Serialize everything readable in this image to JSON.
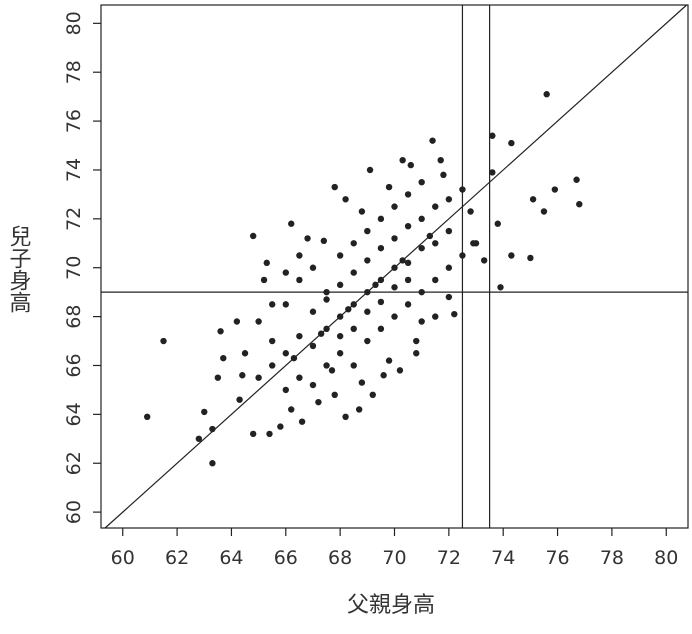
{
  "chart_data": {
    "type": "scatter",
    "x_label": "父親身高",
    "y_label": "兒子身高",
    "xlim": [
      59.2,
      80.8
    ],
    "ylim": [
      59.35,
      80.75
    ],
    "xticks": [
      60,
      62,
      64,
      66,
      68,
      70,
      72,
      74,
      76,
      78,
      80
    ],
    "yticks": [
      60,
      62,
      64,
      66,
      68,
      70,
      72,
      74,
      76,
      78,
      80
    ],
    "color": "#222222",
    "hline": 69.0,
    "vlines": [
      72.5,
      73.5
    ],
    "diagonal": true,
    "x": [
      60.9,
      61.5,
      62.8,
      63.0,
      63.3,
      63.3,
      63.5,
      63.6,
      63.7,
      64.3,
      64.4,
      64.8,
      64.8,
      65.4,
      65.3,
      75.6,
      76.7,
      76.8,
      75.9,
      75.5,
      75.0,
      75.1,
      74.3,
      73.6,
      73.9,
      74.3,
      71.4,
      70.3,
      72.9,
      72.2,
      73.6,
      71.7,
      69.1,
      68.2,
      66.2,
      67.4,
      70.8,
      68.2,
      66.6,
      65.8,
      67.8,
      66,
      66.5,
      67,
      67.5,
      68,
      68.5,
      69,
      69.5,
      70,
      70.5,
      71,
      71.5,
      72,
      65.5,
      66,
      66.5,
      67,
      67.5,
      68,
      68.5,
      69,
      69.5,
      70,
      70.5,
      71,
      71.5,
      72,
      72.5,
      65,
      65.5,
      66,
      66.5,
      67,
      67.5,
      68,
      68.5,
      69,
      69.5,
      70,
      70.5,
      71,
      71.5,
      72,
      72.5,
      73,
      64.5,
      65,
      65.5,
      66,
      66.5,
      67,
      67.5,
      68,
      68.5,
      69,
      69.5,
      70,
      70.5,
      71,
      68,
      68.5,
      69,
      69.5,
      70,
      70.5,
      71,
      71.5,
      72,
      66.2,
      67.2,
      68.8,
      69.8,
      70.8,
      64.2,
      65.2,
      66.8,
      68.8,
      69.8,
      70.6,
      71.8,
      72.8,
      73.3,
      73.8,
      67.8,
      70.2,
      69.2,
      66.3,
      67.3,
      68.3,
      69.3,
      70.3,
      71.3,
      67.7,
      68.7,
      69.6
    ],
    "values": [
      63.9,
      67.0,
      63.0,
      64.1,
      63.4,
      62.0,
      65.5,
      67.4,
      66.3,
      64.6,
      65.6,
      71.3,
      63.2,
      63.2,
      70.2,
      77.1,
      73.6,
      72.6,
      73.2,
      72.3,
      70.4,
      72.8,
      75.1,
      75.4,
      69.2,
      70.5,
      75.2,
      74.4,
      71.0,
      68.1,
      73.9,
      74.4,
      74.0,
      72.8,
      71.8,
      71.1,
      66.5,
      63.9,
      63.7,
      63.5,
      64.8,
      66.5,
      67.2,
      66.8,
      67.5,
      68,
      68.5,
      69,
      69.5,
      70,
      70.2,
      70.8,
      71,
      71.5,
      67,
      68.5,
      69.5,
      70,
      69,
      70.5,
      71,
      71.5,
      72,
      72.5,
      73,
      72,
      72.5,
      72.8,
      73.2,
      65.5,
      66,
      65,
      65.5,
      65.2,
      66,
      66.5,
      66,
      67,
      67.5,
      68,
      68.5,
      69,
      69.5,
      70,
      70.5,
      71,
      66.5,
      67.8,
      68.5,
      69.8,
      70.5,
      68.2,
      68.7,
      69.3,
      69.8,
      70.3,
      70.8,
      71.2,
      71.7,
      73.5,
      67.2,
      67.5,
      68.2,
      68.6,
      69.2,
      69.5,
      67.8,
      68,
      68.8,
      64.2,
      64.5,
      65.3,
      66.2,
      67,
      67.8,
      69.5,
      71.2,
      72.3,
      73.3,
      74.2,
      73.8,
      72.3,
      70.3,
      71.8,
      73.3,
      65.8,
      64.8,
      66.3,
      67.3,
      68.3,
      69.3,
      70.3,
      71.3,
      65.8,
      64.2,
      65.6
    ]
  }
}
